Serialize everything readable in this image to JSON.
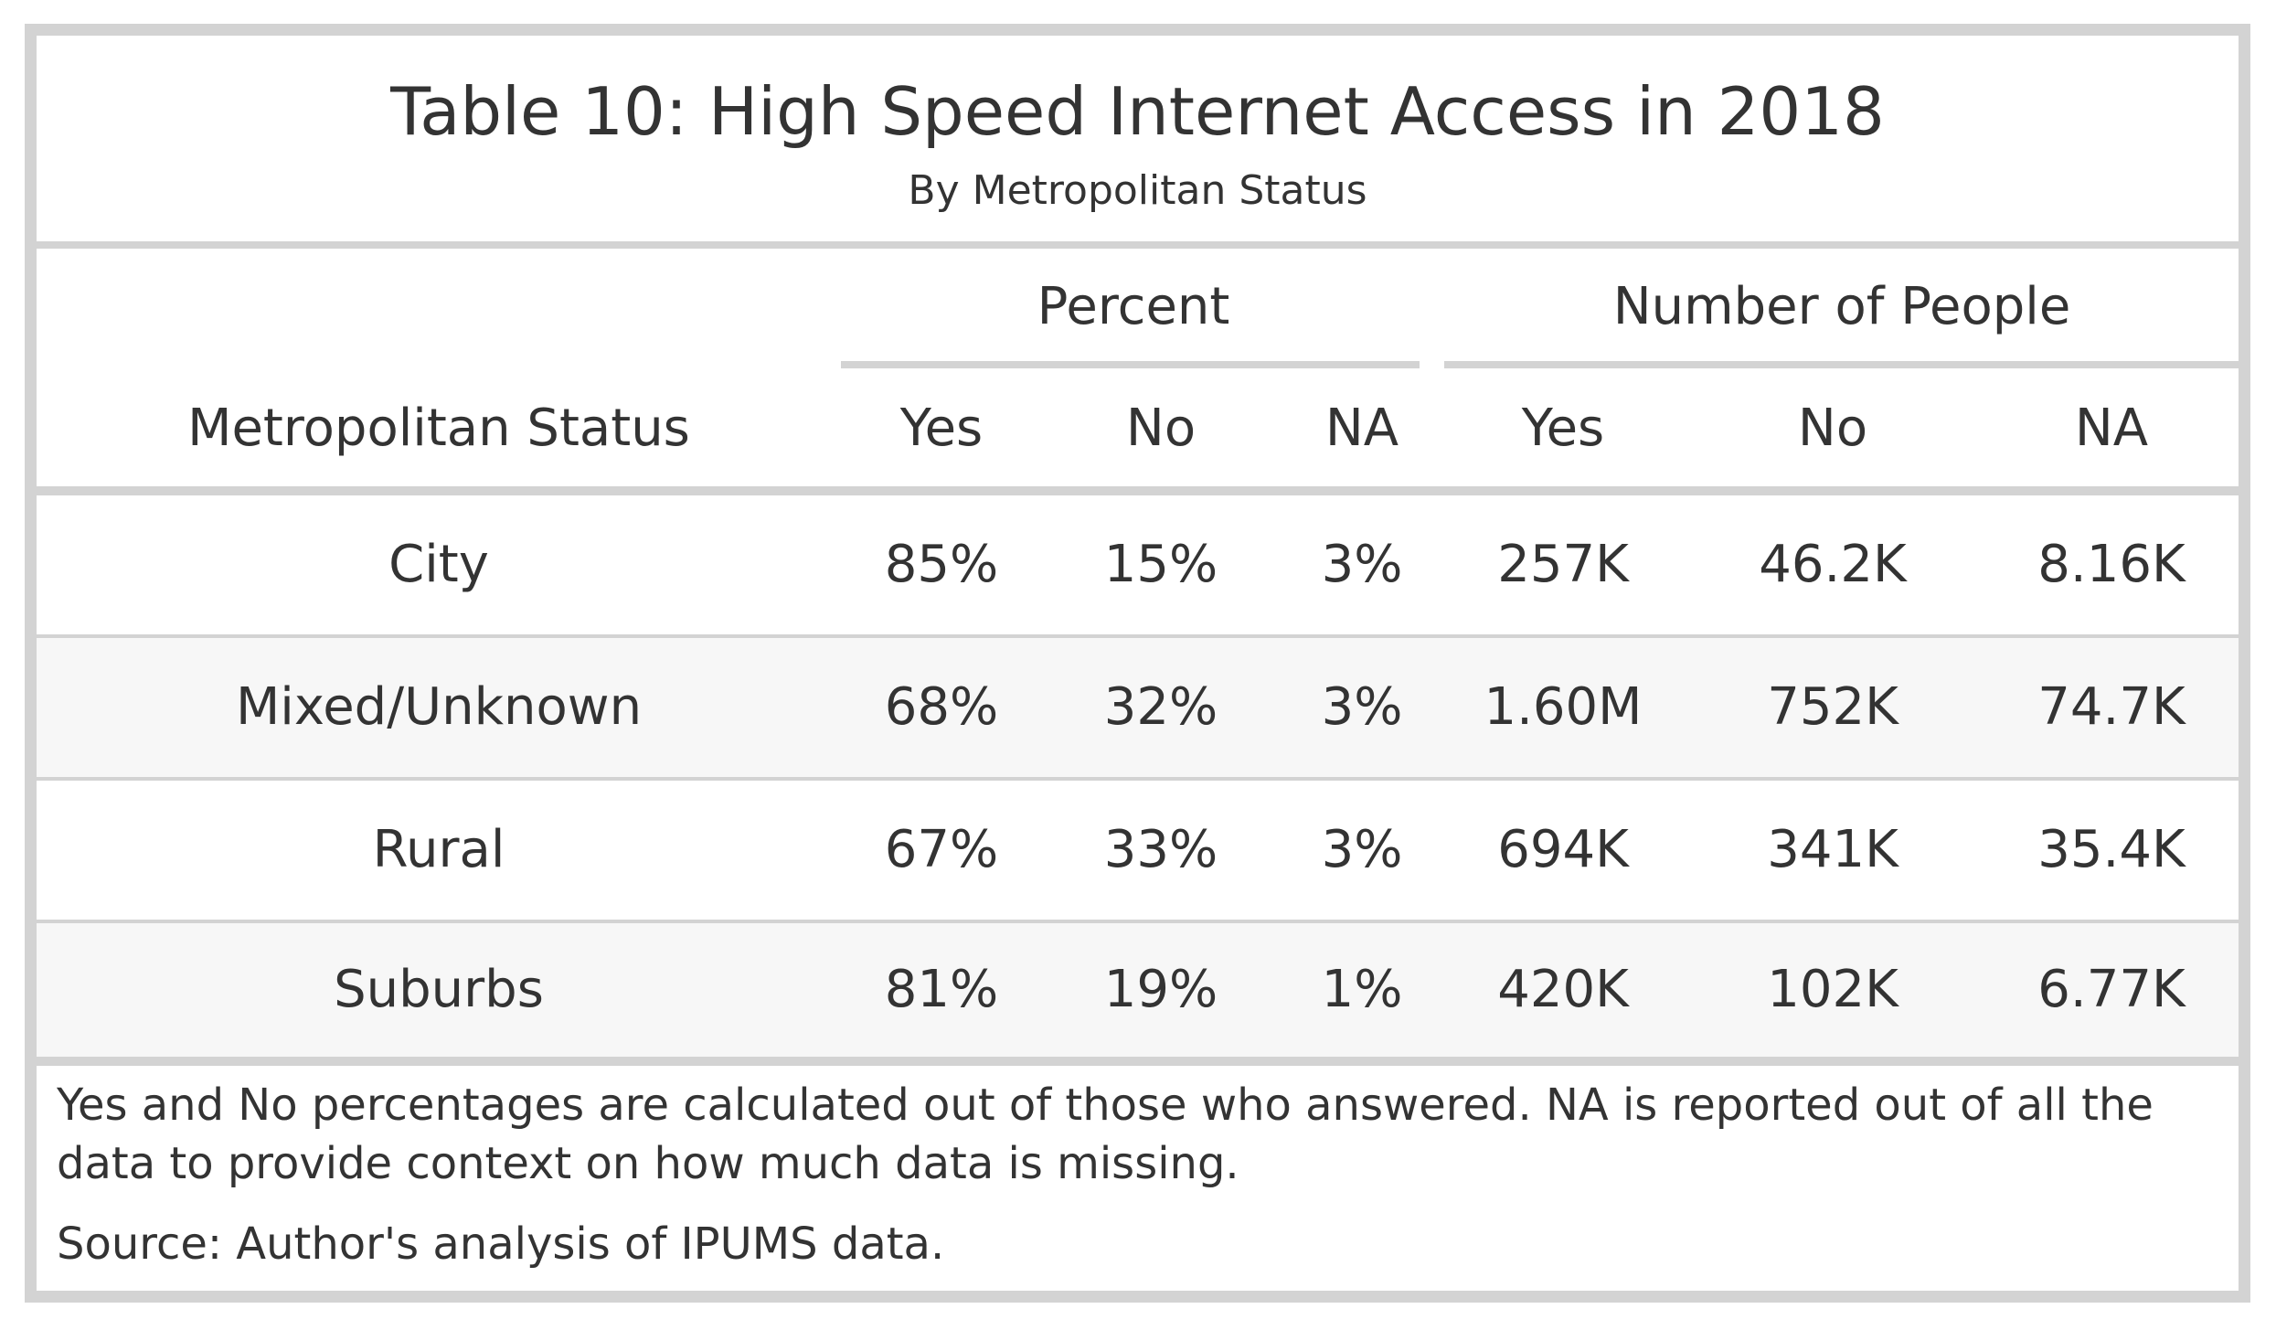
{
  "title": "Table 10: High Speed Internet Access in 2018",
  "subtitle": "By Metropolitan Status",
  "spanners": {
    "percent": "Percent",
    "people": "Number of People"
  },
  "columns": {
    "status": "Metropolitan Status",
    "pct_yes": "Yes",
    "pct_no": "No",
    "pct_na": "NA",
    "num_yes": "Yes",
    "num_no": "No",
    "num_na": "NA"
  },
  "rows": [
    {
      "status": "City",
      "pct_yes": "85%",
      "pct_no": "15%",
      "pct_na": "3%",
      "num_yes": "257K",
      "num_no": "46.2K",
      "num_na": "8.16K"
    },
    {
      "status": "Mixed/Unknown",
      "pct_yes": "68%",
      "pct_no": "32%",
      "pct_na": "3%",
      "num_yes": "1.60M",
      "num_no": "752K",
      "num_na": "74.7K"
    },
    {
      "status": "Rural",
      "pct_yes": "67%",
      "pct_no": "33%",
      "pct_na": "3%",
      "num_yes": "694K",
      "num_no": "341K",
      "num_na": "35.4K"
    },
    {
      "status": "Suburbs",
      "pct_yes": "81%",
      "pct_no": "19%",
      "pct_na": "1%",
      "num_yes": "420K",
      "num_no": "102K",
      "num_na": "6.77K"
    }
  ],
  "footnote": "Yes and No percentages are calculated out of those who answered. NA is reported out of all the data to provide context on how much data is missing.",
  "source": "Source: Author's analysis of IPUMS data.",
  "colors": {
    "border": "#d3d3d3",
    "stripe": "#f7f7f7",
    "text": "#333333"
  }
}
